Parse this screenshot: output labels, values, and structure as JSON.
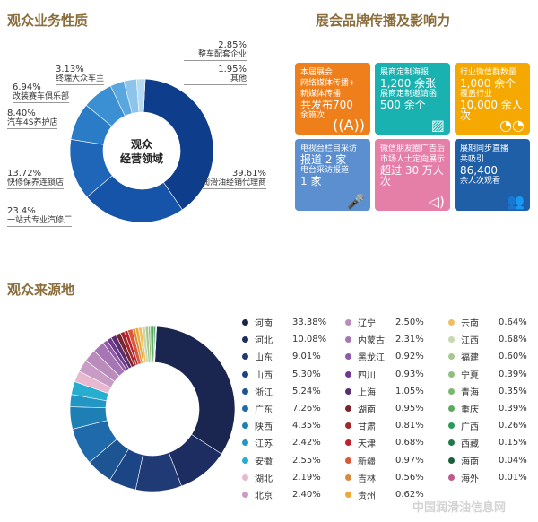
{
  "sections": {
    "business": "观众业务性质",
    "brand": "展会品牌传播及影响力",
    "origin": "观众来源地"
  },
  "chart_data": [
    {
      "type": "pie",
      "title": "观众经营领域",
      "center_label": [
        "观众",
        "经营领域"
      ],
      "categories": [
        "润滑油经销代理商",
        "一站式专业汽修厂",
        "快修保养连锁店",
        "汽车4S养护店",
        "改装赛车俱乐部",
        "终端大众车主",
        "整车配套企业",
        "其他"
      ],
      "values": [
        39.61,
        23.4,
        13.72,
        8.4,
        6.94,
        3.13,
        2.85,
        1.95
      ],
      "labels": [
        "39.61%",
        "23.4%",
        "13.72%",
        "8.40%",
        "6.94%",
        "3.13%",
        "2.85%",
        "1.95%"
      ],
      "colors": [
        "#0e3d8c",
        "#1554a8",
        "#1f66b8",
        "#2a7cc7",
        "#3b8fd3",
        "#5aa6de",
        "#8cc4ea",
        "#b5dbf3"
      ]
    },
    {
      "type": "pie",
      "title": "观众来源地",
      "categories": [
        "河南",
        "河北",
        "山东",
        "山西",
        "浙江",
        "广东",
        "陕西",
        "江苏",
        "安徽",
        "湖北",
        "北京",
        "辽宁",
        "内蒙古",
        "黑龙江",
        "四川",
        "上海",
        "湖南",
        "甘肃",
        "天津",
        "新疆",
        "吉林",
        "贵州",
        "云南",
        "江西",
        "福建",
        "宁夏",
        "青海",
        "重庆",
        "广西",
        "西藏",
        "海南",
        "海外"
      ],
      "values": [
        33.38,
        10.08,
        9.01,
        5.3,
        5.24,
        7.26,
        4.35,
        2.42,
        2.55,
        2.19,
        2.4,
        2.5,
        2.31,
        0.92,
        0.93,
        1.05,
        0.95,
        0.81,
        0.68,
        0.97,
        0.56,
        0.62,
        0.64,
        0.68,
        0.6,
        0.39,
        0.35,
        0.39,
        0.26,
        0.15,
        0.04,
        0.01
      ],
      "labels": [
        "33.38%",
        "10.08%",
        "9.01%",
        "5.30%",
        "5.24%",
        "7.26%",
        "4.35%",
        "2.42%",
        "2.55%",
        "2.19%",
        "2.40%",
        "2.50%",
        "2.31%",
        "0.92%",
        "0.93%",
        "1.05%",
        "0.95%",
        "0.81%",
        "0.68%",
        "0.97%",
        "0.56%",
        "0.62%",
        "0.64%",
        "0.68%",
        "0.60%",
        "0.39%",
        "0.35%",
        "0.39%",
        "0.26%",
        "0.15%",
        "0.04%",
        "0.01%"
      ],
      "colors": [
        "#1a2550",
        "#1d2d62",
        "#1f3a74",
        "#1c4585",
        "#1d5592",
        "#1f6aab",
        "#1e7fb5",
        "#2296c4",
        "#27add0",
        "#e8b8d0",
        "#c89cc4",
        "#b98cbc",
        "#a676b4",
        "#8f5aa8",
        "#6e3a8c",
        "#5a2f6e",
        "#7a2430",
        "#9e2a2a",
        "#c0202c",
        "#d9573c",
        "#d98a3c",
        "#e8aa3a",
        "#f0c060",
        "#c8d8b0",
        "#a8c890",
        "#90c080",
        "#78b870",
        "#5aaa60",
        "#2a9a5a",
        "#1e7a4a",
        "#1a5e3a",
        "#c05a8a"
      ]
    }
  ],
  "tiles": [
    {
      "lines": [
        "本届展会",
        "网络媒体传播+",
        "新媒体传播",
        "共发布700",
        "余篇次"
      ],
      "icon": "broadcast-icon",
      "color": "#ef7f1a"
    },
    {
      "lines": [
        "展商定制海报",
        "1,200 余张",
        "展商定制邀请函",
        "500 余个"
      ],
      "icon": "image-icon",
      "color": "#1ab2b0"
    },
    {
      "lines": [
        "行业微信群数量",
        "1,000 余个",
        "覆盖行业",
        "10,000 余人次"
      ],
      "icon": "wechat-icon",
      "color": "#f5a800"
    },
    {
      "lines": [
        "电视台栏目采访",
        "报道 2 家",
        "电台采访报道",
        "1 家"
      ],
      "icon": "microphone-icon",
      "color": "#5b8fd0"
    },
    {
      "lines": [
        "微信朋友圈广告后",
        "市场人士定向展示",
        "超过 30 万人次"
      ],
      "icon": "speaker-icon",
      "color": "#e57fa8"
    },
    {
      "lines": [
        "展期同步直播",
        "共吸引",
        "86,400",
        "余人次观看"
      ],
      "icon": "people-icon",
      "color": "#1f5fa8"
    }
  ],
  "watermark": "中国润滑油信息网"
}
